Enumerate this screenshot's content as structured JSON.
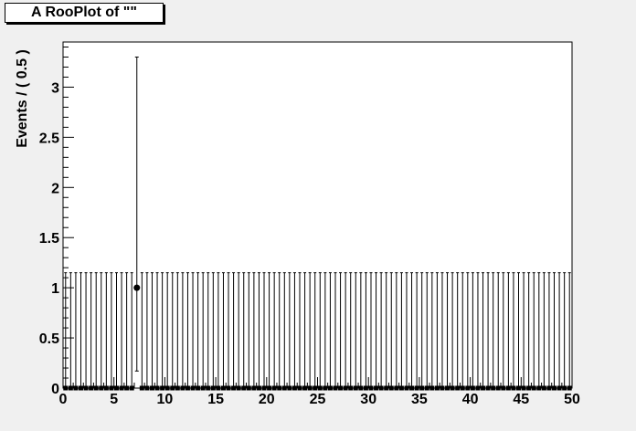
{
  "chart_data": {
    "type": "scatter",
    "title": "A RooPlot of \"\"",
    "xlabel": "",
    "ylabel": "Events / ( 0.5 )",
    "xlim": [
      0,
      50
    ],
    "ylim": [
      0,
      3.45
    ],
    "x_ticks": [
      0,
      5,
      10,
      15,
      20,
      25,
      30,
      35,
      40,
      45,
      50
    ],
    "x_tick_labels": [
      "0",
      "5",
      "10",
      "15",
      "20",
      "25",
      "30",
      "35",
      "40",
      "45",
      "50"
    ],
    "y_ticks": [
      0,
      0.5,
      1,
      1.5,
      2,
      2.5,
      3
    ],
    "y_tick_labels": [
      "0",
      "0.5",
      "1",
      "1.5",
      "2",
      "2.5",
      "3"
    ],
    "bin_width": 0.5,
    "zero_bin_err_high": 1.15,
    "series": [
      {
        "points": [
          {
            "x": 7.25,
            "y": 1,
            "err_low": 0.83,
            "err_high": 2.3
          }
        ]
      }
    ],
    "grid": false,
    "colors": {
      "background": "#f0f0f0",
      "frame": "#ffffff",
      "marker": "#000000"
    }
  }
}
